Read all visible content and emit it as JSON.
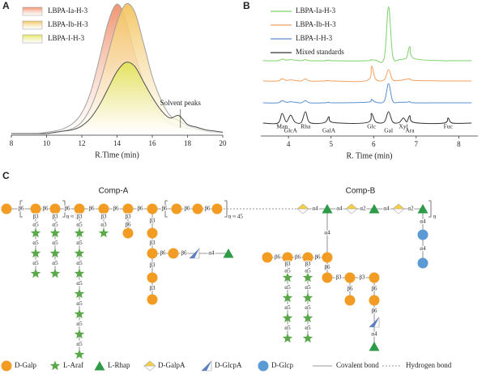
{
  "chart_data": [
    {
      "type": "area",
      "label": "A",
      "x": [
        8,
        8.5,
        9,
        9.5,
        10,
        10.5,
        11,
        11.5,
        12,
        12.5,
        13,
        13.5,
        14,
        14.5,
        15,
        15.5,
        16,
        16.5,
        17,
        17.5,
        18,
        18.5,
        19,
        19.5,
        20
      ],
      "series": [
        {
          "name": "LBPA-Ia-H-3",
          "color": "#f0906a",
          "line_color": "#a0a0a0",
          "values": [
            0,
            0,
            0,
            0,
            1,
            2,
            4,
            8,
            16,
            32,
            58,
            86,
            100,
            88,
            62,
            40,
            24,
            14,
            8,
            6,
            4,
            3,
            2,
            1,
            1
          ]
        },
        {
          "name": "LBPA-Ib-H-3",
          "color": "#f3c45e",
          "line_color": "#a0a0a0",
          "values": [
            0,
            0,
            0,
            0,
            0,
            1,
            2,
            4,
            9,
            20,
            38,
            62,
            86,
            100,
            94,
            70,
            44,
            26,
            14,
            10,
            6,
            4,
            2,
            1,
            1
          ]
        },
        {
          "name": "LBPA-I-H-3",
          "color": "#e2e35a",
          "line_color": "#505050",
          "values": [
            0,
            0,
            0,
            0,
            0,
            1,
            2,
            3,
            6,
            12,
            22,
            35,
            48,
            55,
            52,
            40,
            28,
            18,
            12,
            14,
            7,
            5,
            3,
            2,
            1
          ]
        }
      ],
      "xlim": [
        8,
        20
      ],
      "xticks": [
        8,
        10,
        12,
        14,
        16,
        18,
        20
      ],
      "xlabel": "R.Time (min)",
      "annotation": {
        "text": "Solvent peaks",
        "x": 17.6
      },
      "legend": "upper left"
    },
    {
      "type": "line",
      "label": "B",
      "x": [
        3.4,
        3.75,
        3.85,
        3.95,
        4.05,
        4.15,
        4.3,
        4.4,
        4.5,
        4.85,
        4.95,
        5.05,
        5.85,
        5.95,
        6.05,
        6.25,
        6.35,
        6.45,
        6.6,
        6.7,
        6.78,
        6.85,
        6.95,
        7.65,
        7.75,
        7.85,
        8.3
      ],
      "series": [
        {
          "name": "LBPA-Ia-H-3",
          "color": "#7ed26a",
          "values": [
            0,
            0,
            3,
            1,
            2,
            1,
            0,
            2,
            0,
            0,
            1,
            0,
            0,
            2,
            1,
            5,
            95,
            8,
            2,
            3,
            6,
            25,
            4,
            0,
            0,
            0,
            0
          ]
        },
        {
          "name": "LBPA-Ib-H-3",
          "color": "#f0a060",
          "values": [
            0,
            0,
            4,
            1,
            2,
            1,
            0,
            4,
            0,
            0,
            1,
            0,
            1,
            26,
            3,
            2,
            20,
            2,
            1,
            2,
            3,
            4,
            1,
            0,
            0,
            0,
            0
          ]
        },
        {
          "name": "LBPA-I-H-3",
          "color": "#5b8fd0",
          "values": [
            0,
            0,
            4,
            1,
            2,
            1,
            0,
            4,
            0,
            0,
            1,
            0,
            1,
            6,
            1,
            3,
            34,
            3,
            1,
            1,
            1,
            2,
            0,
            0,
            0,
            0,
            0
          ]
        },
        {
          "name": "Mixed standards",
          "color": "#333333",
          "values": [
            0,
            0,
            17,
            2,
            14,
            2,
            1,
            20,
            1,
            1,
            11,
            1,
            1,
            17,
            2,
            2,
            20,
            2,
            1,
            9,
            2,
            13,
            1,
            0,
            9,
            0,
            0
          ]
        }
      ],
      "xlim": [
        3.35,
        8.45
      ],
      "xticks": [
        4,
        5,
        6,
        7,
        8
      ],
      "xlabel": "R. Time (min)",
      "peak_labels": [
        {
          "text": "Man",
          "x": 3.85
        },
        {
          "text": "GlcA",
          "x": 4.05
        },
        {
          "text": "Rha",
          "x": 4.4
        },
        {
          "text": "GalA",
          "x": 4.95
        },
        {
          "text": "Glc",
          "x": 5.95
        },
        {
          "text": "Gal",
          "x": 6.35
        },
        {
          "text": "Xyl",
          "x": 6.7
        },
        {
          "text": "Ara",
          "x": 6.85
        },
        {
          "text": "Fuc",
          "x": 7.75
        }
      ],
      "legend": "upper left"
    }
  ],
  "panel_c": {
    "label": "C",
    "comp_a": {
      "title": "Comp-A",
      "repeats": [
        "n ≈ 26",
        "n ≈ 45"
      ],
      "linkages": [
        "β6",
        "β6",
        "β6",
        "β6",
        "β6",
        "β6",
        "β6",
        "β6",
        "β6",
        "β3",
        "α5",
        "α5",
        "α5",
        "β3",
        "α5",
        "α5",
        "α5",
        "β3",
        "α5",
        "α5",
        "α5",
        "α5",
        "α5",
        "α5",
        "α5",
        "β3",
        "α3",
        "β3",
        "β6",
        "β3",
        "β3",
        "β3",
        "β3",
        "β6",
        "β6",
        "α4"
      ]
    },
    "comp_b": {
      "title": "Comp-B",
      "repeat": "n",
      "linkages": [
        "α4",
        "α4",
        "α2",
        "α4",
        "α2",
        "β6",
        "β6",
        "β6",
        "α4",
        "β3",
        "α5",
        "α5",
        "α5",
        "α5",
        "β3",
        "α5",
        "α5",
        "α5",
        "α5",
        "β6",
        "β3",
        "β3",
        "β6",
        "β6",
        "β6",
        "α4",
        "α4",
        "α4"
      ]
    },
    "legend": [
      "D-Galp",
      "L-Araf",
      "L-Rhap",
      "D-GalpA",
      "D-GlcpA",
      "D-Glcp",
      "Covalent bond",
      "Hydrogen bond"
    ]
  }
}
